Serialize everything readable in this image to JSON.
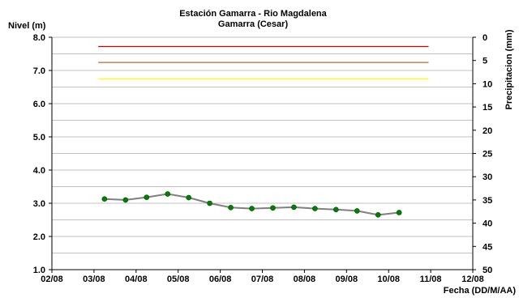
{
  "chart_data": {
    "type": "line",
    "title": "Estación Gamarra - Rio Magdalena",
    "subtitle": "Gamarra (Cesar)",
    "ylabel": "Nivel (m)",
    "y2label": "Precipitacion (mm)",
    "xlabel": "Fecha (DD/M/AA)",
    "x_ticks": [
      "02/08",
      "03/08",
      "04/08",
      "05/08",
      "06/08",
      "07/08",
      "08/08",
      "09/08",
      "10/08",
      "11/08",
      "12/08"
    ],
    "y_ticks": [
      "1.0",
      "2.0",
      "3.0",
      "4.0",
      "5.0",
      "6.0",
      "7.0",
      "8.0"
    ],
    "y2_ticks": [
      "0",
      "5",
      "10",
      "15",
      "20",
      "25",
      "30",
      "35",
      "40",
      "45",
      "50"
    ],
    "ylim": [
      1.0,
      8.0
    ],
    "y2lim": [
      0,
      50
    ],
    "xlim": [
      "02/08",
      "12/08"
    ],
    "grid": true,
    "series": [
      {
        "color": "#808080",
        "marker_color": "#008000",
        "x": [
          "03/08 06:00",
          "03/08 18:00",
          "04/08 06:00",
          "04/08 18:00",
          "05/08 06:00",
          "05/08 18:00",
          "06/08 06:00",
          "06/08 18:00",
          "07/08 06:00",
          "07/08 18:00",
          "08/08 06:00",
          "08/08 18:00",
          "09/08 06:00",
          "09/08 18:00",
          "10/08 06:00"
        ],
        "y": [
          3.13,
          3.1,
          3.18,
          3.28,
          3.17,
          3.0,
          2.87,
          2.84,
          2.86,
          2.88,
          2.84,
          2.81,
          2.77,
          2.65,
          2.72
        ]
      }
    ],
    "reference_lines": [
      {
        "y": 7.72,
        "color": "#cc0000"
      },
      {
        "y": 7.24,
        "color": "#b36b2a"
      },
      {
        "y": 6.74,
        "color": "#ffff00"
      }
    ]
  }
}
